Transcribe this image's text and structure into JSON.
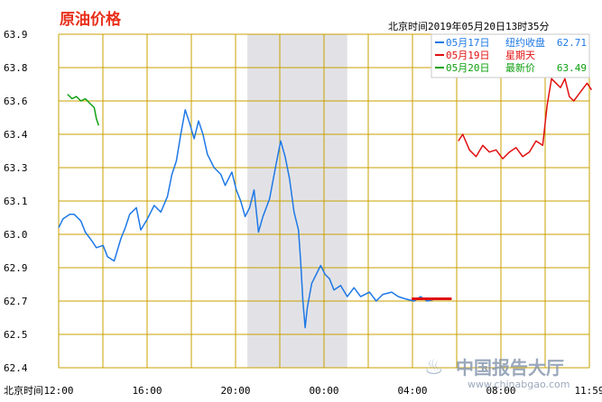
{
  "header": {
    "title": "原油价格",
    "timestamp": "北京时间2019年05月20日13时35分"
  },
  "legend": [
    {
      "date": "05月17日",
      "label": "纽约收盘",
      "value": "62.71",
      "color": "#1e78e6"
    },
    {
      "date": "05月19日",
      "label": "星期天",
      "value": "",
      "color": "#e01010"
    },
    {
      "date": "05月20日",
      "label": "最新价",
      "value": "63.49",
      "color": "#10a010"
    }
  ],
  "watermark": {
    "name": "中国报告大厅",
    "url": "www.chinabgao.com"
  },
  "colors": {
    "grid": "#c8a000",
    "title": "#e8301a",
    "shade": "#e2e2e6",
    "ref_line": "#e01010"
  },
  "chart_data": {
    "type": "line",
    "xlabel": "北京时间",
    "x_ticks": [
      "12:00",
      "16:00",
      "20:00",
      "00:00",
      "04:00",
      "08:00",
      "11:59"
    ],
    "ylim": [
      62.4,
      63.9
    ],
    "y_ticks": [
      "63.9",
      "63.8",
      "63.6",
      "63.4",
      "63.3",
      "63.1",
      "63.0",
      "62.9",
      "62.7",
      "62.5",
      "62.4"
    ],
    "grid": true,
    "legend_position": "top-right",
    "reference_line": {
      "value": 62.71,
      "x_start_hours": 15.9,
      "x_end_hours": 17.7
    },
    "series": [
      {
        "name": "05月17日",
        "x_hours": [
          0,
          0.2,
          0.5,
          0.7,
          1.0,
          1.2,
          1.5,
          1.7,
          2.0,
          2.2,
          2.5,
          2.8,
          3.0,
          3.2,
          3.5,
          3.7,
          4.0,
          4.3,
          4.6,
          4.9,
          5.1,
          5.3,
          5.5,
          5.7,
          5.9,
          6.1,
          6.3,
          6.5,
          6.7,
          7.0,
          7.3,
          7.5,
          7.8,
          8.0,
          8.2,
          8.4,
          8.6,
          8.8,
          9.0,
          9.2,
          9.5,
          9.8,
          10.0,
          10.2,
          10.4,
          10.6,
          10.8,
          10.9,
          11.0,
          11.1,
          11.2,
          11.4,
          11.6,
          11.8,
          12.0,
          12.2,
          12.4,
          12.7,
          13.0,
          13.3,
          13.6,
          14.0,
          14.3,
          14.6,
          15.0,
          15.3,
          15.6,
          16.0,
          16.3,
          16.6,
          17.0
        ],
        "values": [
          63.03,
          63.07,
          63.09,
          63.09,
          63.06,
          63.01,
          62.97,
          62.94,
          62.95,
          62.9,
          62.88,
          62.98,
          63.03,
          63.09,
          63.12,
          63.02,
          63.07,
          63.13,
          63.1,
          63.17,
          63.27,
          63.33,
          63.45,
          63.56,
          63.5,
          63.43,
          63.51,
          63.45,
          63.36,
          63.3,
          63.27,
          63.22,
          63.28,
          63.2,
          63.15,
          63.08,
          63.12,
          63.2,
          63.01,
          63.08,
          63.16,
          63.32,
          63.42,
          63.35,
          63.25,
          63.1,
          63.02,
          62.88,
          62.7,
          62.58,
          62.67,
          62.78,
          62.82,
          62.86,
          62.82,
          62.8,
          62.75,
          62.77,
          62.72,
          62.76,
          62.72,
          62.74,
          62.7,
          62.73,
          62.74,
          62.72,
          62.71,
          62.7,
          62.72,
          62.7,
          62.71
        ]
      },
      {
        "name": "05月19日",
        "x_hours": [
          18.0,
          18.2,
          18.5,
          18.8,
          19.1,
          19.4,
          19.7,
          20.0,
          20.3,
          20.6,
          20.9,
          21.2,
          21.5,
          21.8,
          22.0,
          22.2,
          22.4,
          22.6,
          22.8,
          23.0,
          23.2,
          23.5,
          23.8,
          24.0
        ],
        "values": [
          63.42,
          63.45,
          63.38,
          63.35,
          63.4,
          63.37,
          63.38,
          63.34,
          63.37,
          63.39,
          63.35,
          63.37,
          63.42,
          63.4,
          63.58,
          63.7,
          63.68,
          63.66,
          63.7,
          63.62,
          63.6,
          63.64,
          63.68,
          63.65
        ]
      },
      {
        "name": "05月20日",
        "x_hours": [
          -1.2,
          -1.0,
          -0.8,
          -0.6,
          -0.4,
          -0.2,
          0.0,
          0.1,
          0.2
        ],
        "values": [
          63.63,
          63.61,
          63.62,
          63.6,
          63.61,
          63.59,
          63.57,
          63.52,
          63.49
        ]
      }
    ]
  }
}
